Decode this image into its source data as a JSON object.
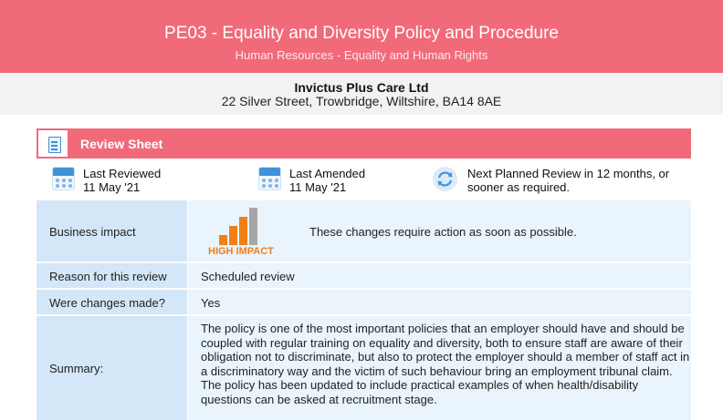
{
  "header": {
    "title": "PE03 - Equality and Diversity Policy and Procedure",
    "subtitle": "Human Resources - Equality and Human Rights"
  },
  "company": {
    "name": "Invictus Plus Care Ltd",
    "address": "22 Silver Street, Trowbridge, Wiltshire, BA14 8AE"
  },
  "section": {
    "title": "Review Sheet",
    "icon": "document-icon"
  },
  "meta": {
    "last_reviewed_label": "Last Reviewed",
    "last_reviewed_date": "11 May '21",
    "last_amended_label": "Last Amended",
    "last_amended_date": "11 May '21",
    "next_review_line1": "Next Planned Review in 12 months, or",
    "next_review_line2": "sooner as required.",
    "calendar_icon": "calendar-icon",
    "refresh_icon": "refresh-icon"
  },
  "rows": {
    "impact": {
      "label": "Business impact",
      "badge": "HIGH IMPACT",
      "level": "high",
      "text": "These changes require action as soon as possible."
    },
    "reason": {
      "label": "Reason for this review",
      "value": "Scheduled review"
    },
    "changes": {
      "label": "Were changes made?",
      "value": "Yes"
    },
    "summary": {
      "label": "Summary:",
      "text": "The policy is one of the most important policies that an employer should have and should be coupled with regular training on equality and diversity, both to ensure staff are aware of their obligation not to discriminate, but also to protect the employer should a member of staff act in a discriminatory way and the victim of such behaviour bring an employment tribunal claim. The policy has been updated to include practical examples of when health/disability questions can be asked at recruitment stage."
    }
  },
  "colors": {
    "brand": "#f16a7a",
    "label_cell": "#d3e7f8",
    "value_cell": "#e9f4fc",
    "impact_orange": "#f07f19",
    "impact_grey": "#a6a6a6",
    "icon_blue": "#3f93db"
  }
}
